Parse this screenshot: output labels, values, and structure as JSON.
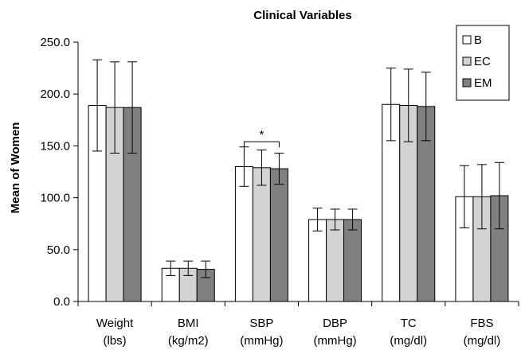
{
  "chart_data": {
    "type": "bar",
    "title": "Clinical Variables",
    "ylabel": "Mean of Women",
    "xlabel": "",
    "ylim": [
      0,
      250
    ],
    "ytick_values": [
      0,
      50,
      100,
      150,
      200,
      250
    ],
    "ytick_labels": [
      "0.0",
      "50.0",
      "100.0",
      "150.0",
      "200.0",
      "250.0"
    ],
    "categories": [
      [
        "Weight",
        "(lbs)"
      ],
      [
        "BMI",
        "(kg/m2)"
      ],
      [
        "SBP",
        "(mmHg)"
      ],
      [
        "DBP",
        "(mmHg)"
      ],
      [
        "TC",
        "(mg/dl)"
      ],
      [
        "FBS",
        "(mg/dl)"
      ]
    ],
    "series": [
      {
        "name": "B",
        "color": "#ffffff",
        "values": [
          189,
          32,
          130,
          79,
          190,
          101
        ],
        "errors": [
          44,
          7,
          19,
          11,
          35,
          30
        ]
      },
      {
        "name": "EC",
        "color": "#d3d3d3",
        "values": [
          187,
          32,
          129,
          79,
          189,
          101
        ],
        "errors": [
          44,
          7,
          17,
          10,
          35,
          31
        ]
      },
      {
        "name": "EM",
        "color": "#808080",
        "values": [
          187,
          31,
          128,
          79,
          188,
          102
        ],
        "errors": [
          44,
          8,
          15,
          10,
          33,
          32
        ]
      }
    ],
    "annotations": [
      {
        "text": "*",
        "category_index": 2,
        "series_from": 0,
        "series_to": 2,
        "y": 154
      }
    ],
    "legend_position": "top-right",
    "grid": false
  }
}
